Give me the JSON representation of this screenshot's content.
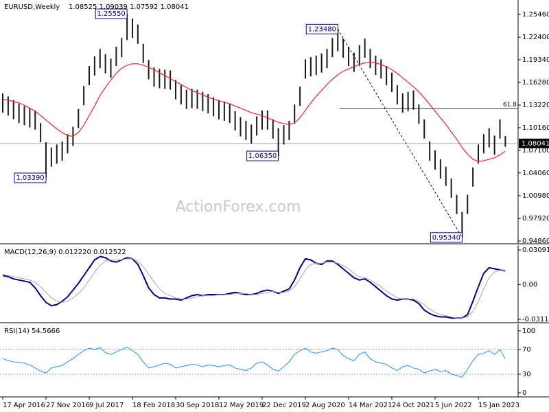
{
  "chart_data": [
    {
      "type": "ohlc",
      "title": "EURUSD,Weekly",
      "quote": "1.08525 1.09039 1.07592 1.08041",
      "watermark": "ActionForex.com",
      "categories": [
        "17 Apr 2016",
        null,
        null,
        null,
        null,
        null,
        null,
        null,
        "27 Nov 2016",
        null,
        null,
        null,
        null,
        null,
        null,
        null,
        "9 Jul 2017",
        null,
        null,
        null,
        null,
        null,
        null,
        null,
        "18 Feb 2018",
        null,
        null,
        null,
        null,
        null,
        null,
        null,
        "30 Sep 2018",
        null,
        null,
        null,
        null,
        null,
        null,
        null,
        "12 May 2019",
        null,
        null,
        null,
        null,
        null,
        null,
        null,
        "22 Dec 2019",
        null,
        null,
        null,
        null,
        null,
        null,
        null,
        "2 Aug 2020",
        null,
        null,
        null,
        null,
        null,
        null,
        null,
        "14 Mar 2021",
        null,
        null,
        null,
        null,
        null,
        null,
        null,
        "24 Oct 2021",
        null,
        null,
        null,
        null,
        null,
        null,
        null,
        "5 Jun 2022",
        null,
        null,
        null,
        null,
        null,
        null,
        null,
        "15 Jan 2023",
        null,
        null,
        null,
        null,
        null
      ],
      "high": [
        1.148,
        1.144,
        1.139,
        1.134,
        1.131,
        1.128,
        1.125,
        1.108,
        1.082,
        1.075,
        1.079,
        1.083,
        1.093,
        1.103,
        1.127,
        1.158,
        1.185,
        1.198,
        1.208,
        1.201,
        1.195,
        1.211,
        1.223,
        1.2555,
        1.249,
        1.241,
        1.215,
        1.193,
        1.183,
        1.181,
        1.18,
        1.179,
        1.166,
        1.159,
        1.153,
        1.154,
        1.153,
        1.15,
        1.147,
        1.143,
        1.139,
        1.137,
        1.134,
        1.124,
        1.116,
        1.111,
        1.106,
        1.117,
        1.125,
        1.125,
        1.113,
        1.101,
        1.105,
        1.111,
        1.133,
        1.157,
        1.194,
        1.197,
        1.199,
        1.202,
        1.208,
        1.223,
        1.2348,
        1.222,
        1.211,
        1.203,
        1.213,
        1.222,
        1.208,
        1.199,
        1.194,
        1.185,
        1.176,
        1.159,
        1.148,
        1.15,
        1.152,
        1.133,
        1.113,
        1.083,
        1.071,
        1.059,
        1.049,
        1.033,
        1.011,
        0.988,
        1.011,
        1.048,
        1.079,
        1.093,
        1.101,
        1.091,
        1.113,
        1.09039
      ],
      "low": [
        1.122,
        1.118,
        1.113,
        1.108,
        1.105,
        1.102,
        1.099,
        1.082,
        1.0339,
        1.049,
        1.053,
        1.057,
        1.067,
        1.077,
        1.101,
        1.132,
        1.159,
        1.172,
        1.182,
        1.175,
        1.169,
        1.185,
        1.197,
        1.22,
        1.223,
        1.215,
        1.189,
        1.167,
        1.157,
        1.155,
        1.154,
        1.153,
        1.14,
        1.133,
        1.127,
        1.128,
        1.127,
        1.124,
        1.121,
        1.117,
        1.113,
        1.111,
        1.108,
        1.098,
        1.09,
        1.085,
        1.08,
        1.091,
        1.099,
        1.099,
        1.087,
        1.0635,
        1.079,
        1.085,
        1.107,
        1.131,
        1.168,
        1.171,
        1.173,
        1.176,
        1.182,
        1.197,
        1.205,
        1.196,
        1.185,
        1.177,
        1.187,
        1.196,
        1.182,
        1.173,
        1.168,
        1.159,
        1.15,
        1.133,
        1.122,
        1.124,
        1.126,
        1.107,
        1.087,
        1.057,
        1.045,
        1.033,
        1.023,
        1.007,
        0.985,
        0.9534,
        0.985,
        1.022,
        1.053,
        1.067,
        1.075,
        1.065,
        1.087,
        1.07592
      ],
      "bar_color": "#1a1a1a",
      "series": [
        {
          "color": "#e8262b",
          "values": [
            1.14,
            1.139,
            1.137,
            1.135,
            1.132,
            1.128,
            1.124,
            1.118,
            1.112,
            1.106,
            1.1,
            1.095,
            1.091,
            1.09,
            1.095,
            1.105,
            1.118,
            1.131,
            1.145,
            1.156,
            1.166,
            1.175,
            1.182,
            1.186,
            1.188,
            1.188,
            1.186,
            1.183,
            1.18,
            1.176,
            1.172,
            1.168,
            1.164,
            1.16,
            1.156,
            1.152,
            1.149,
            1.146,
            1.143,
            1.14,
            1.138,
            1.136,
            1.134,
            1.131,
            1.128,
            1.125,
            1.122,
            1.12,
            1.118,
            1.115,
            1.112,
            1.109,
            1.107,
            1.106,
            1.108,
            1.115,
            1.125,
            1.135,
            1.144,
            1.152,
            1.16,
            1.167,
            1.173,
            1.178,
            1.181,
            1.184,
            1.187,
            1.189,
            1.19,
            1.189,
            1.187,
            1.184,
            1.18,
            1.175,
            1.169,
            1.163,
            1.157,
            1.15,
            1.142,
            1.133,
            1.124,
            1.115,
            1.106,
            1.096,
            1.086,
            1.075,
            1.066,
            1.059,
            1.056,
            1.057,
            1.059,
            1.061,
            1.065,
            1.07
          ]
        }
      ],
      "ylim": [
        0.9449,
        1.2741
      ],
      "yticks": [
        {
          "value": 1.2546,
          "label": "1.25460"
        },
        {
          "value": 1.224,
          "label": "1.22400"
        },
        {
          "value": 1.1934,
          "label": "1.19340"
        },
        {
          "value": 1.1628,
          "label": "1.16280"
        },
        {
          "value": 1.1322,
          "label": "1.13220"
        },
        {
          "value": 1.1016,
          "label": "1.10160"
        },
        {
          "value": 1.071,
          "label": "1.07100"
        },
        {
          "value": 1.0406,
          "label": "1.04060"
        },
        {
          "value": 1.0098,
          "label": "1.00980"
        },
        {
          "value": 0.9792,
          "label": "0.97920"
        },
        {
          "value": 0.9486,
          "label": "0.94860"
        }
      ],
      "current_price": 1.08041,
      "fibonacci": {
        "ratio": 61.8,
        "price": 1.1273
      },
      "annotations": [
        {
          "value": 1.2555,
          "label": "1.25550"
        },
        {
          "value": 1.0339,
          "label": "1.03390"
        },
        {
          "value": 1.0635,
          "label": "1.06350"
        },
        {
          "value": 1.2348,
          "label": "1.23480"
        },
        {
          "value": 0.9534,
          "label": "0.95340"
        }
      ]
    },
    {
      "type": "macd",
      "title": "MACD(12,26,9) 0.012220 0.012522",
      "series": [
        {
          "color": "#000080",
          "values": [
            0.008,
            0.007,
            0.005,
            0.004,
            0.003,
            0.002,
            -0.003,
            -0.01,
            -0.016,
            -0.019,
            -0.018,
            -0.015,
            -0.011,
            -0.005,
            0.001,
            0.008,
            0.015,
            0.022,
            0.025,
            0.024,
            0.021,
            0.02,
            0.022,
            0.024,
            0.023,
            0.018,
            0.008,
            -0.003,
            -0.009,
            -0.012,
            -0.012,
            -0.013,
            -0.013,
            -0.014,
            -0.012,
            -0.01,
            -0.009,
            -0.01,
            -0.009,
            -0.009,
            -0.009,
            -0.009,
            -0.008,
            -0.007,
            -0.008,
            -0.009,
            -0.009,
            -0.008,
            -0.006,
            -0.005,
            -0.006,
            -0.008,
            -0.006,
            -0.004,
            0.004,
            0.015,
            0.023,
            0.022,
            0.019,
            0.018,
            0.021,
            0.021,
            0.018,
            0.014,
            0.01,
            0.006,
            0.004,
            0.005,
            0.002,
            -0.002,
            -0.006,
            -0.01,
            -0.013,
            -0.014,
            -0.013,
            -0.013,
            -0.014,
            -0.017,
            -0.023,
            -0.026,
            -0.028,
            -0.029,
            -0.029,
            -0.03,
            -0.03,
            -0.03,
            -0.027,
            -0.015,
            -0.002,
            0.01,
            0.015,
            0.014,
            0.013,
            0.01222
          ]
        },
        {
          "color": "#a8a8a8",
          "values": [
            0.009,
            0.008,
            0.007,
            0.006,
            0.005,
            0.004,
            0.002,
            -0.002,
            -0.007,
            -0.012,
            -0.015,
            -0.016,
            -0.015,
            -0.012,
            -0.008,
            -0.003,
            0.004,
            0.011,
            0.017,
            0.021,
            0.022,
            0.022,
            0.022,
            0.023,
            0.023,
            0.021,
            0.016,
            0.009,
            0.002,
            -0.004,
            -0.008,
            -0.01,
            -0.012,
            -0.013,
            -0.013,
            -0.012,
            -0.011,
            -0.01,
            -0.01,
            -0.01,
            -0.009,
            -0.009,
            -0.009,
            -0.008,
            -0.008,
            -0.008,
            -0.009,
            -0.009,
            -0.008,
            -0.007,
            -0.006,
            -0.007,
            -0.007,
            -0.006,
            -0.002,
            0.005,
            0.013,
            0.018,
            0.019,
            0.019,
            0.02,
            0.02,
            0.019,
            0.017,
            0.014,
            0.01,
            0.007,
            0.006,
            0.004,
            0.001,
            -0.002,
            -0.006,
            -0.009,
            -0.012,
            -0.013,
            -0.013,
            -0.013,
            -0.015,
            -0.018,
            -0.022,
            -0.025,
            -0.027,
            -0.028,
            -0.029,
            -0.03,
            -0.03,
            -0.029,
            -0.024,
            -0.015,
            -0.004,
            0.006,
            0.011,
            0.013,
            0.012522
          ]
        }
      ],
      "ylim": [
        -0.0342,
        0.0352
      ],
      "yticks": [
        0.030916,
        {
          "value": 0,
          "label": "0.00"
        },
        -0.031124
      ]
    },
    {
      "type": "rsi",
      "title": "RSI(14) 54.5666",
      "color": "#1e90ff",
      "values": [
        55,
        52,
        50,
        49,
        48,
        45,
        40,
        35,
        32,
        40,
        42,
        44,
        50,
        55,
        62,
        68,
        72,
        70,
        73,
        65,
        62,
        66,
        70,
        74,
        68,
        62,
        50,
        40,
        42,
        45,
        48,
        46,
        40,
        42,
        44,
        46,
        45,
        42,
        45,
        44,
        42,
        44,
        45,
        40,
        38,
        36,
        40,
        48,
        50,
        45,
        38,
        35,
        42,
        50,
        62,
        68,
        72,
        66,
        64,
        66,
        68,
        72,
        70,
        60,
        55,
        52,
        62,
        66,
        55,
        50,
        48,
        46,
        40,
        36,
        42,
        44,
        40,
        38,
        32,
        35,
        38,
        34,
        36,
        30,
        28,
        25,
        38,
        52,
        62,
        64,
        68,
        62,
        70,
        54.5666
      ],
      "ylim": [
        -6.7,
        111
      ],
      "yticks": [
        0,
        30,
        70,
        100
      ],
      "levels": [
        30,
        70
      ]
    }
  ]
}
